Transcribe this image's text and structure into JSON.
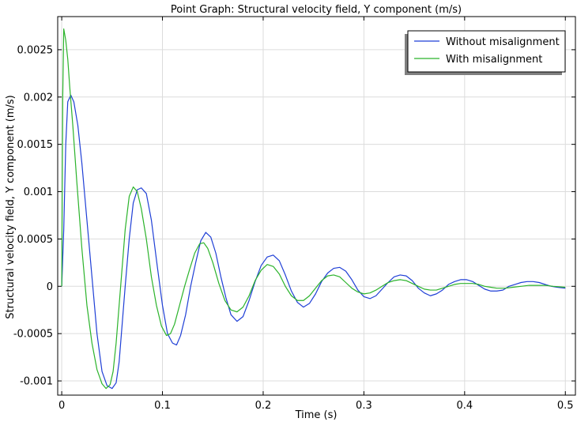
{
  "chart_data": {
    "type": "line",
    "title": "Point Graph: Structural velocity field, Y component (m/s)",
    "xlabel": "Time (s)",
    "ylabel": "Structural velocity field, Y component (m/s)",
    "xlim": [
      -0.004,
      0.51
    ],
    "ylim": [
      -0.00115,
      0.00285
    ],
    "x_ticks": [
      0,
      0.1,
      0.2,
      0.3,
      0.4,
      0.5
    ],
    "x_tick_labels": [
      "0",
      "0.1",
      "0.2",
      "0.3",
      "0.4",
      "0.5"
    ],
    "y_ticks": [
      -0.001,
      -0.0005,
      0,
      0.0005,
      0.001,
      0.0015,
      0.002,
      0.0025
    ],
    "y_tick_labels": [
      "-0.001",
      "-0.0005",
      "0",
      "0.0005",
      "0.001",
      "0.0015",
      "0.002",
      "0.0025"
    ],
    "grid": true,
    "legend_position": "top-right",
    "series": [
      {
        "name": "Without misalignment",
        "color": "#1f3fd6",
        "points": [
          [
            0,
            0
          ],
          [
            0.002,
            0.0006
          ],
          [
            0.004,
            0.0015
          ],
          [
            0.006,
            0.00195
          ],
          [
            0.009,
            0.00202
          ],
          [
            0.012,
            0.00195
          ],
          [
            0.016,
            0.0017
          ],
          [
            0.02,
            0.0013
          ],
          [
            0.025,
            0.0007
          ],
          [
            0.03,
            0.0001
          ],
          [
            0.035,
            -0.0005
          ],
          [
            0.04,
            -0.0009
          ],
          [
            0.045,
            -0.00105
          ],
          [
            0.05,
            -0.00108
          ],
          [
            0.054,
            -0.00102
          ],
          [
            0.057,
            -0.0008
          ],
          [
            0.06,
            -0.0004
          ],
          [
            0.063,
            0.0
          ],
          [
            0.067,
            0.0005
          ],
          [
            0.071,
            0.00088
          ],
          [
            0.075,
            0.00102
          ],
          [
            0.079,
            0.00104
          ],
          [
            0.084,
            0.00098
          ],
          [
            0.089,
            0.0007
          ],
          [
            0.095,
            0.0002
          ],
          [
            0.1,
            -0.0002
          ],
          [
            0.105,
            -0.0005
          ],
          [
            0.11,
            -0.0006
          ],
          [
            0.114,
            -0.00062
          ],
          [
            0.118,
            -0.00052
          ],
          [
            0.123,
            -0.0003
          ],
          [
            0.128,
            -0.0
          ],
          [
            0.133,
            0.00025
          ],
          [
            0.138,
            0.00048
          ],
          [
            0.143,
            0.00057
          ],
          [
            0.148,
            0.00052
          ],
          [
            0.153,
            0.00035
          ],
          [
            0.158,
            0.0001
          ],
          [
            0.163,
            -0.00012
          ],
          [
            0.168,
            -0.0003
          ],
          [
            0.174,
            -0.00037
          ],
          [
            0.18,
            -0.00032
          ],
          [
            0.186,
            -0.00015
          ],
          [
            0.192,
            5e-05
          ],
          [
            0.198,
            0.00022
          ],
          [
            0.204,
            0.00031
          ],
          [
            0.21,
            0.00033
          ],
          [
            0.216,
            0.00027
          ],
          [
            0.222,
            0.00012
          ],
          [
            0.228,
            -5e-05
          ],
          [
            0.234,
            -0.00017
          ],
          [
            0.24,
            -0.00022
          ],
          [
            0.246,
            -0.00018
          ],
          [
            0.252,
            -8e-05
          ],
          [
            0.258,
            5e-05
          ],
          [
            0.264,
            0.00014
          ],
          [
            0.27,
            0.00019
          ],
          [
            0.276,
            0.0002
          ],
          [
            0.282,
            0.00016
          ],
          [
            0.288,
            7e-05
          ],
          [
            0.294,
            -4e-05
          ],
          [
            0.3,
            -0.00011
          ],
          [
            0.306,
            -0.00013
          ],
          [
            0.312,
            -0.0001
          ],
          [
            0.318,
            -3e-05
          ],
          [
            0.324,
            4e-05
          ],
          [
            0.33,
            0.0001
          ],
          [
            0.336,
            0.00012
          ],
          [
            0.342,
            0.00011
          ],
          [
            0.348,
            6e-05
          ],
          [
            0.354,
            -2e-05
          ],
          [
            0.36,
            -7e-05
          ],
          [
            0.366,
            -0.0001
          ],
          [
            0.372,
            -8e-05
          ],
          [
            0.378,
            -4e-05
          ],
          [
            0.384,
            2e-05
          ],
          [
            0.39,
            5e-05
          ],
          [
            0.396,
            7e-05
          ],
          [
            0.402,
            7e-05
          ],
          [
            0.408,
            5e-05
          ],
          [
            0.414,
            1e-05
          ],
          [
            0.42,
            -3e-05
          ],
          [
            0.426,
            -5e-05
          ],
          [
            0.432,
            -5e-05
          ],
          [
            0.438,
            -4e-05
          ],
          [
            0.444,
            -0.0
          ],
          [
            0.45,
            2e-05
          ],
          [
            0.456,
            4e-05
          ],
          [
            0.462,
            5e-05
          ],
          [
            0.468,
            5e-05
          ],
          [
            0.474,
            4e-05
          ],
          [
            0.48,
            2e-05
          ],
          [
            0.486,
            0.0
          ],
          [
            0.492,
            -1e-05
          ],
          [
            0.5,
            -2e-05
          ]
        ]
      },
      {
        "name": "With misalignment",
        "color": "#2bb32b",
        "points": [
          [
            0,
            0
          ],
          [
            0.001,
            0.002
          ],
          [
            0.002,
            0.00272
          ],
          [
            0.004,
            0.0026
          ],
          [
            0.006,
            0.0024
          ],
          [
            0.008,
            0.0021
          ],
          [
            0.011,
            0.0017
          ],
          [
            0.015,
            0.0011
          ],
          [
            0.02,
            0.0004
          ],
          [
            0.025,
            -0.0002
          ],
          [
            0.03,
            -0.0006
          ],
          [
            0.035,
            -0.00088
          ],
          [
            0.04,
            -0.00103
          ],
          [
            0.044,
            -0.00108
          ],
          [
            0.048,
            -0.00104
          ],
          [
            0.051,
            -0.0009
          ],
          [
            0.054,
            -0.0006
          ],
          [
            0.057,
            -0.0002
          ],
          [
            0.06,
            0.0002
          ],
          [
            0.063,
            0.0006
          ],
          [
            0.067,
            0.00095
          ],
          [
            0.071,
            0.00105
          ],
          [
            0.075,
            0.001
          ],
          [
            0.079,
            0.00082
          ],
          [
            0.084,
            0.0005
          ],
          [
            0.089,
            0.0001
          ],
          [
            0.094,
            -0.0002
          ],
          [
            0.099,
            -0.00042
          ],
          [
            0.104,
            -0.00052
          ],
          [
            0.108,
            -0.0005
          ],
          [
            0.112,
            -0.0004
          ],
          [
            0.117,
            -0.0002
          ],
          [
            0.122,
            0.0
          ],
          [
            0.127,
            0.00018
          ],
          [
            0.132,
            0.00035
          ],
          [
            0.137,
            0.00045
          ],
          [
            0.141,
            0.00046
          ],
          [
            0.145,
            0.0004
          ],
          [
            0.15,
            0.00025
          ],
          [
            0.156,
            3e-05
          ],
          [
            0.162,
            -0.00015
          ],
          [
            0.168,
            -0.00025
          ],
          [
            0.174,
            -0.00027
          ],
          [
            0.18,
            -0.00022
          ],
          [
            0.186,
            -0.0001
          ],
          [
            0.192,
            6e-05
          ],
          [
            0.198,
            0.00017
          ],
          [
            0.204,
            0.00023
          ],
          [
            0.21,
            0.00021
          ],
          [
            0.216,
            0.00013
          ],
          [
            0.222,
            0.0
          ],
          [
            0.228,
            -0.0001
          ],
          [
            0.234,
            -0.00015
          ],
          [
            0.24,
            -0.00015
          ],
          [
            0.246,
            -0.0001
          ],
          [
            0.252,
            -2e-05
          ],
          [
            0.258,
            6e-05
          ],
          [
            0.264,
            0.00011
          ],
          [
            0.27,
            0.00012
          ],
          [
            0.276,
            0.0001
          ],
          [
            0.282,
            4e-05
          ],
          [
            0.288,
            -2e-05
          ],
          [
            0.294,
            -6e-05
          ],
          [
            0.3,
            -8e-05
          ],
          [
            0.306,
            -7e-05
          ],
          [
            0.312,
            -4e-05
          ],
          [
            0.318,
            0.0
          ],
          [
            0.324,
            4e-05
          ],
          [
            0.33,
            6e-05
          ],
          [
            0.336,
            7e-05
          ],
          [
            0.342,
            6e-05
          ],
          [
            0.348,
            3e-05
          ],
          [
            0.354,
            0.0
          ],
          [
            0.36,
            -3e-05
          ],
          [
            0.366,
            -4e-05
          ],
          [
            0.372,
            -4e-05
          ],
          [
            0.378,
            -2e-05
          ],
          [
            0.384,
            0.0
          ],
          [
            0.39,
            2e-05
          ],
          [
            0.396,
            3e-05
          ],
          [
            0.402,
            3e-05
          ],
          [
            0.408,
            3e-05
          ],
          [
            0.414,
            2e-05
          ],
          [
            0.42,
            0.0
          ],
          [
            0.426,
            -1e-05
          ],
          [
            0.432,
            -2e-05
          ],
          [
            0.44,
            -2e-05
          ],
          [
            0.448,
            -1e-05
          ],
          [
            0.456,
            0.0
          ],
          [
            0.464,
            1e-05
          ],
          [
            0.472,
            1e-05
          ],
          [
            0.48,
            1e-05
          ],
          [
            0.488,
            0.0
          ],
          [
            0.5,
            -1e-05
          ]
        ]
      }
    ]
  }
}
